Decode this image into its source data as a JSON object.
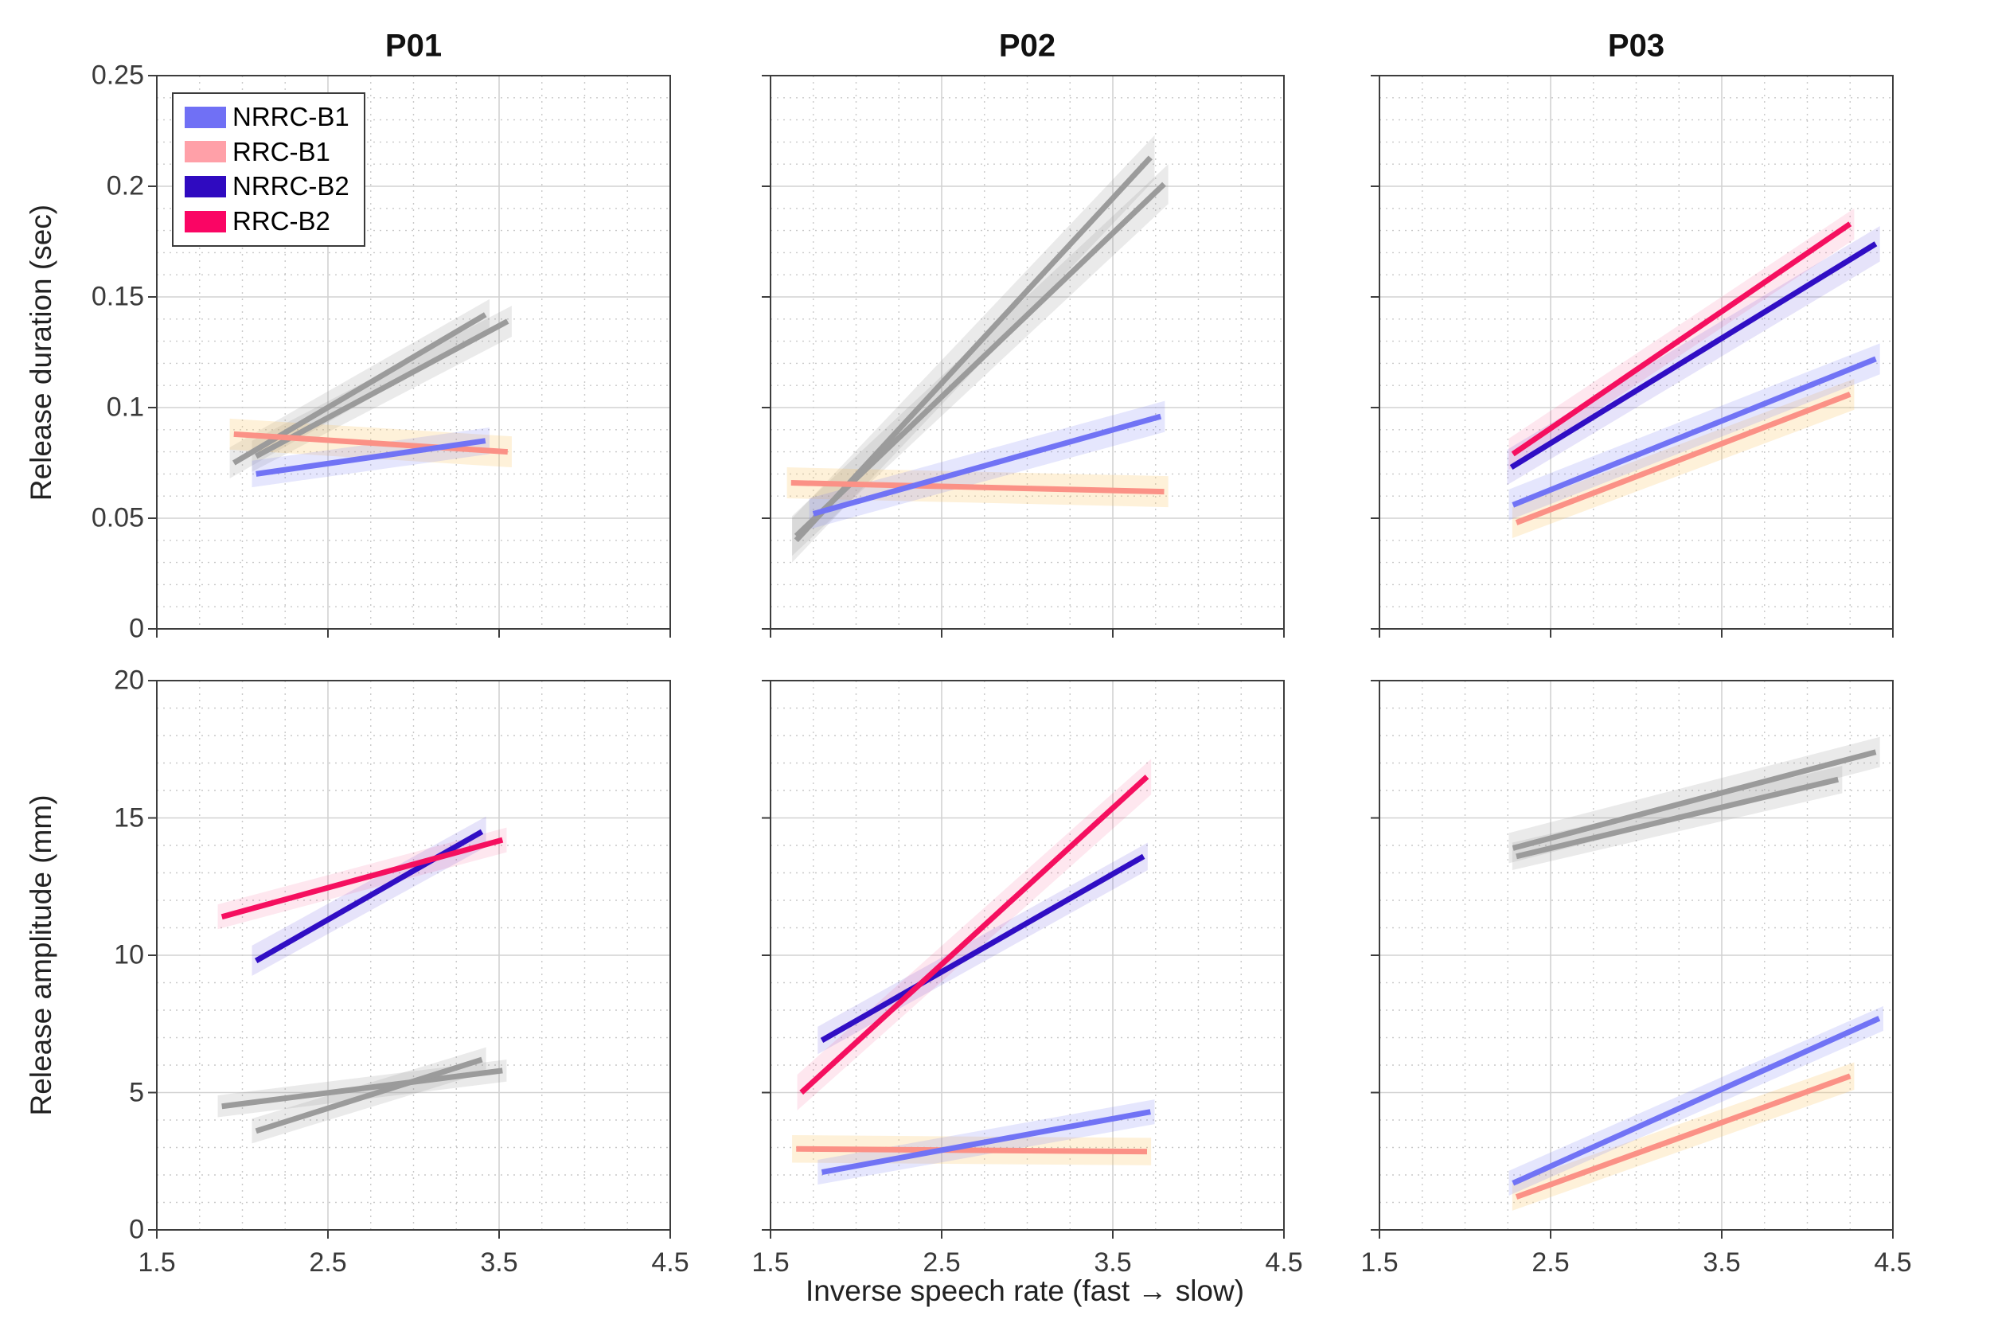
{
  "figure": {
    "background": "#ffffff",
    "x_axis_label": "Inverse speech rate (fast → slow)",
    "y_axis_label_top": "Release duration (sec)",
    "y_axis_label_bottom": "Release amplitude (mm)"
  },
  "legend": {
    "items": [
      {
        "label": "NRRC-B1",
        "color": "#7070F5"
      },
      {
        "label": "RRC-B1",
        "color": "#FFA0A8"
      },
      {
        "label": "NRRC-B2",
        "color": "#2F0AC0"
      },
      {
        "label": "RRC-B2",
        "color": "#FA0564"
      }
    ]
  },
  "series_styles": {
    "NRRC-B1": {
      "line": "#7173F5",
      "band": "rgba(113,115,245,0.18)"
    },
    "RRC-B1": {
      "line": "#FB9186",
      "band": "rgba(250,200,105,0.25)"
    },
    "NRRC-B2": {
      "line": "#300EC4",
      "band": "rgba(80,60,220,0.14)"
    },
    "RRC-B2": {
      "line": "#F50F5F",
      "band": "rgba(245,15,95,0.10)"
    },
    "gray": {
      "line": "#9B9B9B",
      "band": "rgba(150,150,150,0.20)"
    }
  },
  "chart_data": {
    "type": "line",
    "grid": {
      "major_on": true,
      "minor_on": true,
      "x_minor_step": 0.25,
      "y_top_minor_step": 0.01,
      "y_bottom_minor_step": 1
    },
    "x_axis": {
      "label": "Inverse speech rate (fast → slow)",
      "lim": [
        1.5,
        4.5
      ],
      "ticks": [
        1.5,
        2.5,
        3.5,
        4.5
      ],
      "tick_labels": [
        "1.5",
        "2.5",
        "3.5",
        "4.5"
      ]
    },
    "y_axis_top": {
      "label": "Release duration (sec)",
      "lim": [
        0,
        0.25
      ],
      "ticks": [
        0,
        0.05,
        0.1,
        0.15,
        0.2,
        0.25
      ],
      "tick_labels": [
        "0",
        "0.05",
        "0.1",
        "0.15",
        "0.2",
        "0.25"
      ]
    },
    "y_axis_bottom": {
      "label": "Release amplitude (mm)",
      "lim": [
        0,
        20
      ],
      "ticks": [
        0,
        5,
        10,
        15,
        20
      ],
      "tick_labels": [
        "0",
        "5",
        "10",
        "15",
        "20"
      ]
    },
    "column_titles": [
      "P01",
      "P02",
      "P03"
    ],
    "panels": [
      {
        "title": "P01",
        "row": 0,
        "col": 0,
        "measure": "Release duration (sec)",
        "series": [
          {
            "name": "gray-1",
            "style": "gray",
            "x": [
              1.95,
              3.42
            ],
            "y": [
              0.075,
              0.142
            ],
            "band_halfwidth": 0.007
          },
          {
            "name": "gray-2",
            "style": "gray",
            "x": [
              2.08,
              3.55
            ],
            "y": [
              0.078,
              0.139
            ],
            "band_halfwidth": 0.007
          },
          {
            "name": "RRC-B1",
            "style": "RRC-B1",
            "x": [
              1.95,
              3.55
            ],
            "y": [
              0.088,
              0.08
            ],
            "band_halfwidth": 0.007
          },
          {
            "name": "NRRC-B1",
            "style": "NRRC-B1",
            "x": [
              2.08,
              3.42
            ],
            "y": [
              0.07,
              0.085
            ],
            "band_halfwidth": 0.006
          }
        ]
      },
      {
        "title": "P02",
        "row": 0,
        "col": 1,
        "measure": "Release duration (sec)",
        "series": [
          {
            "name": "gray-1",
            "style": "gray",
            "x": [
              1.65,
              3.72
            ],
            "y": [
              0.04,
              0.213
            ],
            "band_halfwidth": 0.01
          },
          {
            "name": "gray-2",
            "style": "gray",
            "x": [
              1.65,
              3.8
            ],
            "y": [
              0.042,
              0.201
            ],
            "band_halfwidth": 0.009
          },
          {
            "name": "RRC-B1",
            "style": "RRC-B1",
            "x": [
              1.62,
              3.8
            ],
            "y": [
              0.066,
              0.062
            ],
            "band_halfwidth": 0.007
          },
          {
            "name": "NRRC-B1",
            "style": "NRRC-B1",
            "x": [
              1.75,
              3.78
            ],
            "y": [
              0.052,
              0.096
            ],
            "band_halfwidth": 0.007
          }
        ]
      },
      {
        "title": "P03",
        "row": 0,
        "col": 2,
        "measure": "Release duration (sec)",
        "series": [
          {
            "name": "RRC-B1",
            "style": "RRC-B1",
            "x": [
              2.3,
              4.25
            ],
            "y": [
              0.048,
              0.106
            ],
            "band_halfwidth": 0.007
          },
          {
            "name": "NRRC-B1",
            "style": "NRRC-B1",
            "x": [
              2.28,
              4.4
            ],
            "y": [
              0.056,
              0.122
            ],
            "band_halfwidth": 0.007
          },
          {
            "name": "NRRC-B2",
            "style": "NRRC-B2",
            "x": [
              2.27,
              4.4
            ],
            "y": [
              0.073,
              0.174
            ],
            "band_halfwidth": 0.008
          },
          {
            "name": "RRC-B2",
            "style": "RRC-B2",
            "x": [
              2.28,
              4.25
            ],
            "y": [
              0.079,
              0.183
            ],
            "band_halfwidth": 0.007
          }
        ]
      },
      {
        "title": "P01",
        "row": 1,
        "col": 0,
        "measure": "Release amplitude (mm)",
        "series": [
          {
            "name": "gray-1",
            "style": "gray",
            "x": [
              1.88,
              3.52
            ],
            "y": [
              4.5,
              5.8
            ],
            "band_halfwidth": 0.4
          },
          {
            "name": "gray-2",
            "style": "gray",
            "x": [
              2.08,
              3.4
            ],
            "y": [
              3.6,
              6.2
            ],
            "band_halfwidth": 0.45
          },
          {
            "name": "NRRC-B2",
            "style": "NRRC-B2",
            "x": [
              2.08,
              3.4
            ],
            "y": [
              9.8,
              14.5
            ],
            "band_halfwidth": 0.55
          },
          {
            "name": "RRC-B2",
            "style": "RRC-B2",
            "x": [
              1.88,
              3.52
            ],
            "y": [
              11.4,
              14.2
            ],
            "band_halfwidth": 0.45
          }
        ]
      },
      {
        "title": "P02",
        "row": 1,
        "col": 1,
        "measure": "Release amplitude (mm)",
        "series": [
          {
            "name": "RRC-B1",
            "style": "RRC-B1",
            "x": [
              1.65,
              3.7
            ],
            "y": [
              2.95,
              2.85
            ],
            "band_halfwidth": 0.5
          },
          {
            "name": "NRRC-B1",
            "style": "NRRC-B1",
            "x": [
              1.8,
              3.72
            ],
            "y": [
              2.1,
              4.3
            ],
            "band_halfwidth": 0.45
          },
          {
            "name": "NRRC-B2",
            "style": "NRRC-B2",
            "x": [
              1.8,
              3.68
            ],
            "y": [
              6.9,
              13.6
            ],
            "band_halfwidth": 0.5
          },
          {
            "name": "RRC-B2",
            "style": "RRC-B2",
            "x": [
              1.68,
              3.7
            ],
            "y": [
              5.0,
              16.5
            ],
            "band_halfwidth": 0.65
          }
        ]
      },
      {
        "title": "P03",
        "row": 1,
        "col": 2,
        "measure": "Release amplitude (mm)",
        "series": [
          {
            "name": "gray-1",
            "style": "gray",
            "x": [
              2.28,
              4.4
            ],
            "y": [
              13.9,
              17.4
            ],
            "band_halfwidth": 0.55
          },
          {
            "name": "gray-2",
            "style": "gray",
            "x": [
              2.3,
              4.18
            ],
            "y": [
              13.6,
              16.4
            ],
            "band_halfwidth": 0.5
          },
          {
            "name": "RRC-B1",
            "style": "RRC-B1",
            "x": [
              2.3,
              4.25
            ],
            "y": [
              1.2,
              5.6
            ],
            "band_halfwidth": 0.5
          },
          {
            "name": "NRRC-B1",
            "style": "NRRC-B1",
            "x": [
              2.28,
              4.42
            ],
            "y": [
              1.7,
              7.7
            ],
            "band_halfwidth": 0.45
          }
        ]
      }
    ]
  }
}
